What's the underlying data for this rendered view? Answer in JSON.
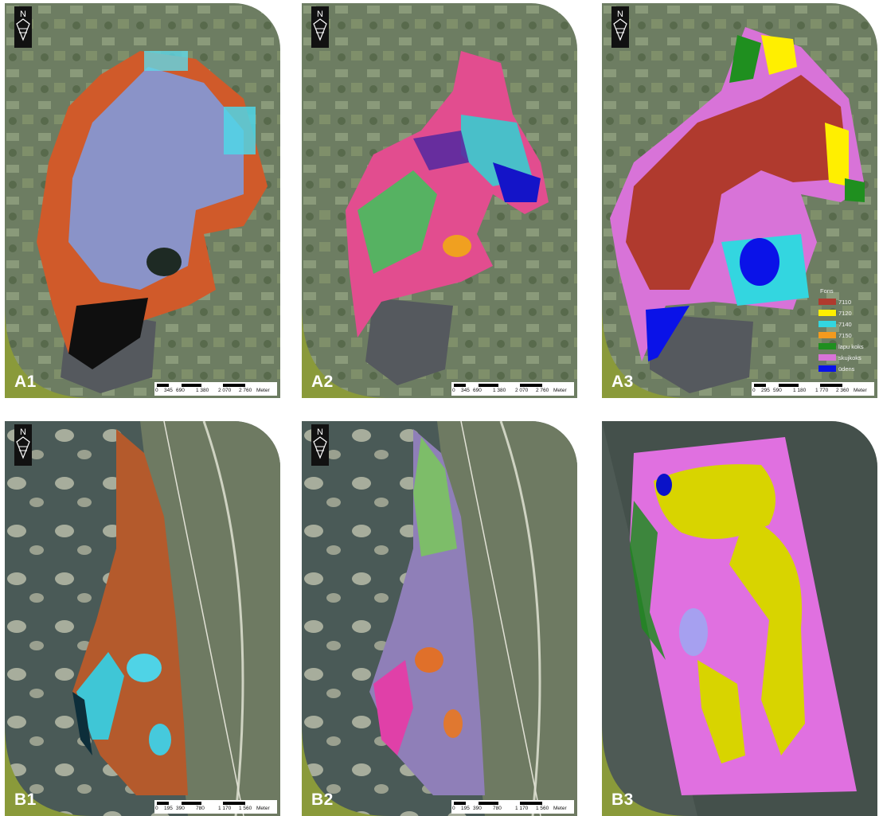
{
  "panels": {
    "a1": {
      "label": "A1",
      "scale": {
        "ticks": [
          "0",
          "345",
          "690",
          "1 380",
          "2 070",
          "2 760"
        ],
        "unit": "Meter"
      }
    },
    "a2": {
      "label": "A2",
      "scale": {
        "ticks": [
          "0",
          "345",
          "690",
          "1 380",
          "2 070",
          "2 760"
        ],
        "unit": "Meter"
      }
    },
    "a3": {
      "label": "A3",
      "scale": {
        "ticks": [
          "0",
          "295",
          "590",
          "1 180",
          "1 770",
          "2 360"
        ],
        "unit": "Meter"
      },
      "legend": {
        "title": "Fons",
        "items": [
          {
            "label": "7110",
            "color": "#b03a2e"
          },
          {
            "label": "7120",
            "color": "#ffef00"
          },
          {
            "label": "7140",
            "color": "#33d6e0"
          },
          {
            "label": "7150",
            "color": "#f39a1e"
          },
          {
            "label": "lapu koks",
            "color": "#1f8f1f"
          },
          {
            "label": "skujkoks",
            "color": "#d873d8"
          },
          {
            "label": "ūdens",
            "color": "#0a12e8"
          }
        ]
      }
    },
    "b1": {
      "label": "B1",
      "scale": {
        "ticks": [
          "0",
          "195",
          "390",
          "780",
          "1 170",
          "1 560"
        ],
        "unit": "Meter"
      }
    },
    "b2": {
      "label": "B2",
      "scale": {
        "ticks": [
          "0",
          "195",
          "390",
          "780",
          "1 170",
          "1 560"
        ],
        "unit": "Meter"
      }
    },
    "b3": {
      "label": "B3"
    }
  },
  "colors": {
    "corner": "#8a9a3a",
    "background_map": "#6f7f66",
    "lake": "#5a5e63",
    "sea": "#4b5a58"
  }
}
